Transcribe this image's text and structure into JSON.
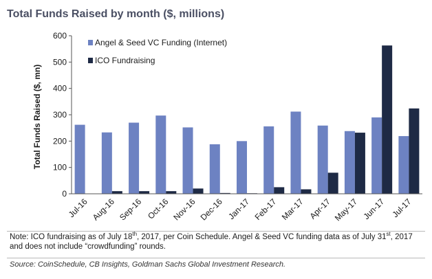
{
  "colors": {
    "angel": "#6d82c2",
    "ico": "#1e2a45",
    "title": "#4a4f63"
  },
  "chart_data": {
    "type": "bar",
    "title": "Total Funds Raised by month ($, millions)",
    "xlabel": "",
    "ylabel": "Total Funds Raised ($, mn)",
    "ylim": [
      0,
      600
    ],
    "yticks": [
      0,
      100,
      200,
      300,
      400,
      500,
      600
    ],
    "grid": false,
    "legend_position": "top-left",
    "categories": [
      "Jul-16",
      "Aug-16",
      "Sep-16",
      "Oct-16",
      "Nov-16",
      "Dec-16",
      "Jan-17",
      "Feb-17",
      "Mar-17",
      "Apr-17",
      "May-17",
      "Jun-17",
      "Jul-17"
    ],
    "series": [
      {
        "name": "Angel & Seed VC Funding (Internet)",
        "values": [
          262,
          233,
          270,
          297,
          252,
          188,
          200,
          256,
          312,
          259,
          238,
          290,
          219
        ]
      },
      {
        "name": "ICO Fundraising",
        "values": [
          0,
          10,
          10,
          10,
          20,
          3,
          2,
          25,
          17,
          80,
          232,
          563,
          324
        ]
      }
    ]
  },
  "footnote": {
    "part1": "Note: ICO fundraising as of July 18",
    "sup1": "th",
    "part2": ", 2017, per Coin Schedule. Angel & Seed VC funding data as of July 31",
    "sup2": "st",
    "part3": ", 2017 and does not include “crowdfunding” rounds."
  },
  "source": "Source: CoinSchedule, CB Insights, Goldman Sachs Global Investment Research."
}
